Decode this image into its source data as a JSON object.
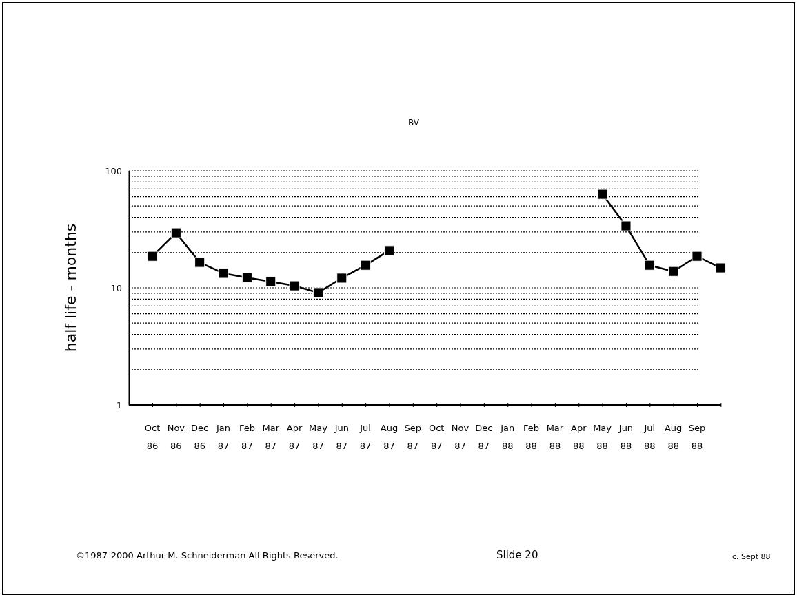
{
  "chart_data": {
    "type": "line",
    "title": "BV",
    "ylabel": "half life - months",
    "categories": [
      "Oct 86",
      "Nov 86",
      "Dec 86",
      "Jan 87",
      "Feb 87",
      "Mar 87",
      "Apr 87",
      "May 87",
      "Jun 87",
      "Jul 87",
      "Aug 87",
      "Sep 87",
      "Oct 87",
      "Nov 87",
      "Dec 87",
      "Jan 88",
      "Feb 88",
      "Mar 88",
      "Apr 88",
      "May 88",
      "Jun 88",
      "Jul 88",
      "Aug 88",
      "Sep 88",
      null
    ],
    "series": [
      {
        "color": "#000000",
        "values": [
          18.6,
          29.5,
          16.5,
          13.3,
          12.2,
          11.3,
          10.4,
          9.1,
          12.1,
          15.6,
          20.8,
          null,
          null,
          null,
          null,
          null,
          null,
          null,
          null,
          63,
          33.8,
          15.6,
          13.8,
          18.6,
          14.8
        ]
      }
    ],
    "log": true,
    "ylim": [
      1,
      100
    ],
    "yticks": [
      1,
      {
        "value": 2,
        "label": null
      },
      {
        "value": 3,
        "label": null
      },
      {
        "value": 4,
        "label": null
      },
      {
        "value": 5,
        "label": null
      },
      {
        "value": 6,
        "label": null
      },
      {
        "value": 7,
        "label": null
      },
      {
        "value": 8,
        "label": null
      },
      {
        "value": 9,
        "label": null
      },
      10,
      {
        "value": 20,
        "label": null
      },
      {
        "value": 30,
        "label": null
      },
      {
        "value": 40,
        "label": null
      },
      {
        "value": 50,
        "label": null
      },
      {
        "value": 60,
        "label": null
      },
      {
        "value": 70,
        "label": null
      },
      {
        "value": 80,
        "label": null
      },
      {
        "value": 90,
        "label": null
      },
      100
    ],
    "grid": "y",
    "marker": "square",
    "line_style": "solid",
    "annotations": [
      "©1987-2000 Arthur M. Schneiderman  All Rights Reserved.",
      "Slide 20",
      "c. Sept 88"
    ]
  }
}
